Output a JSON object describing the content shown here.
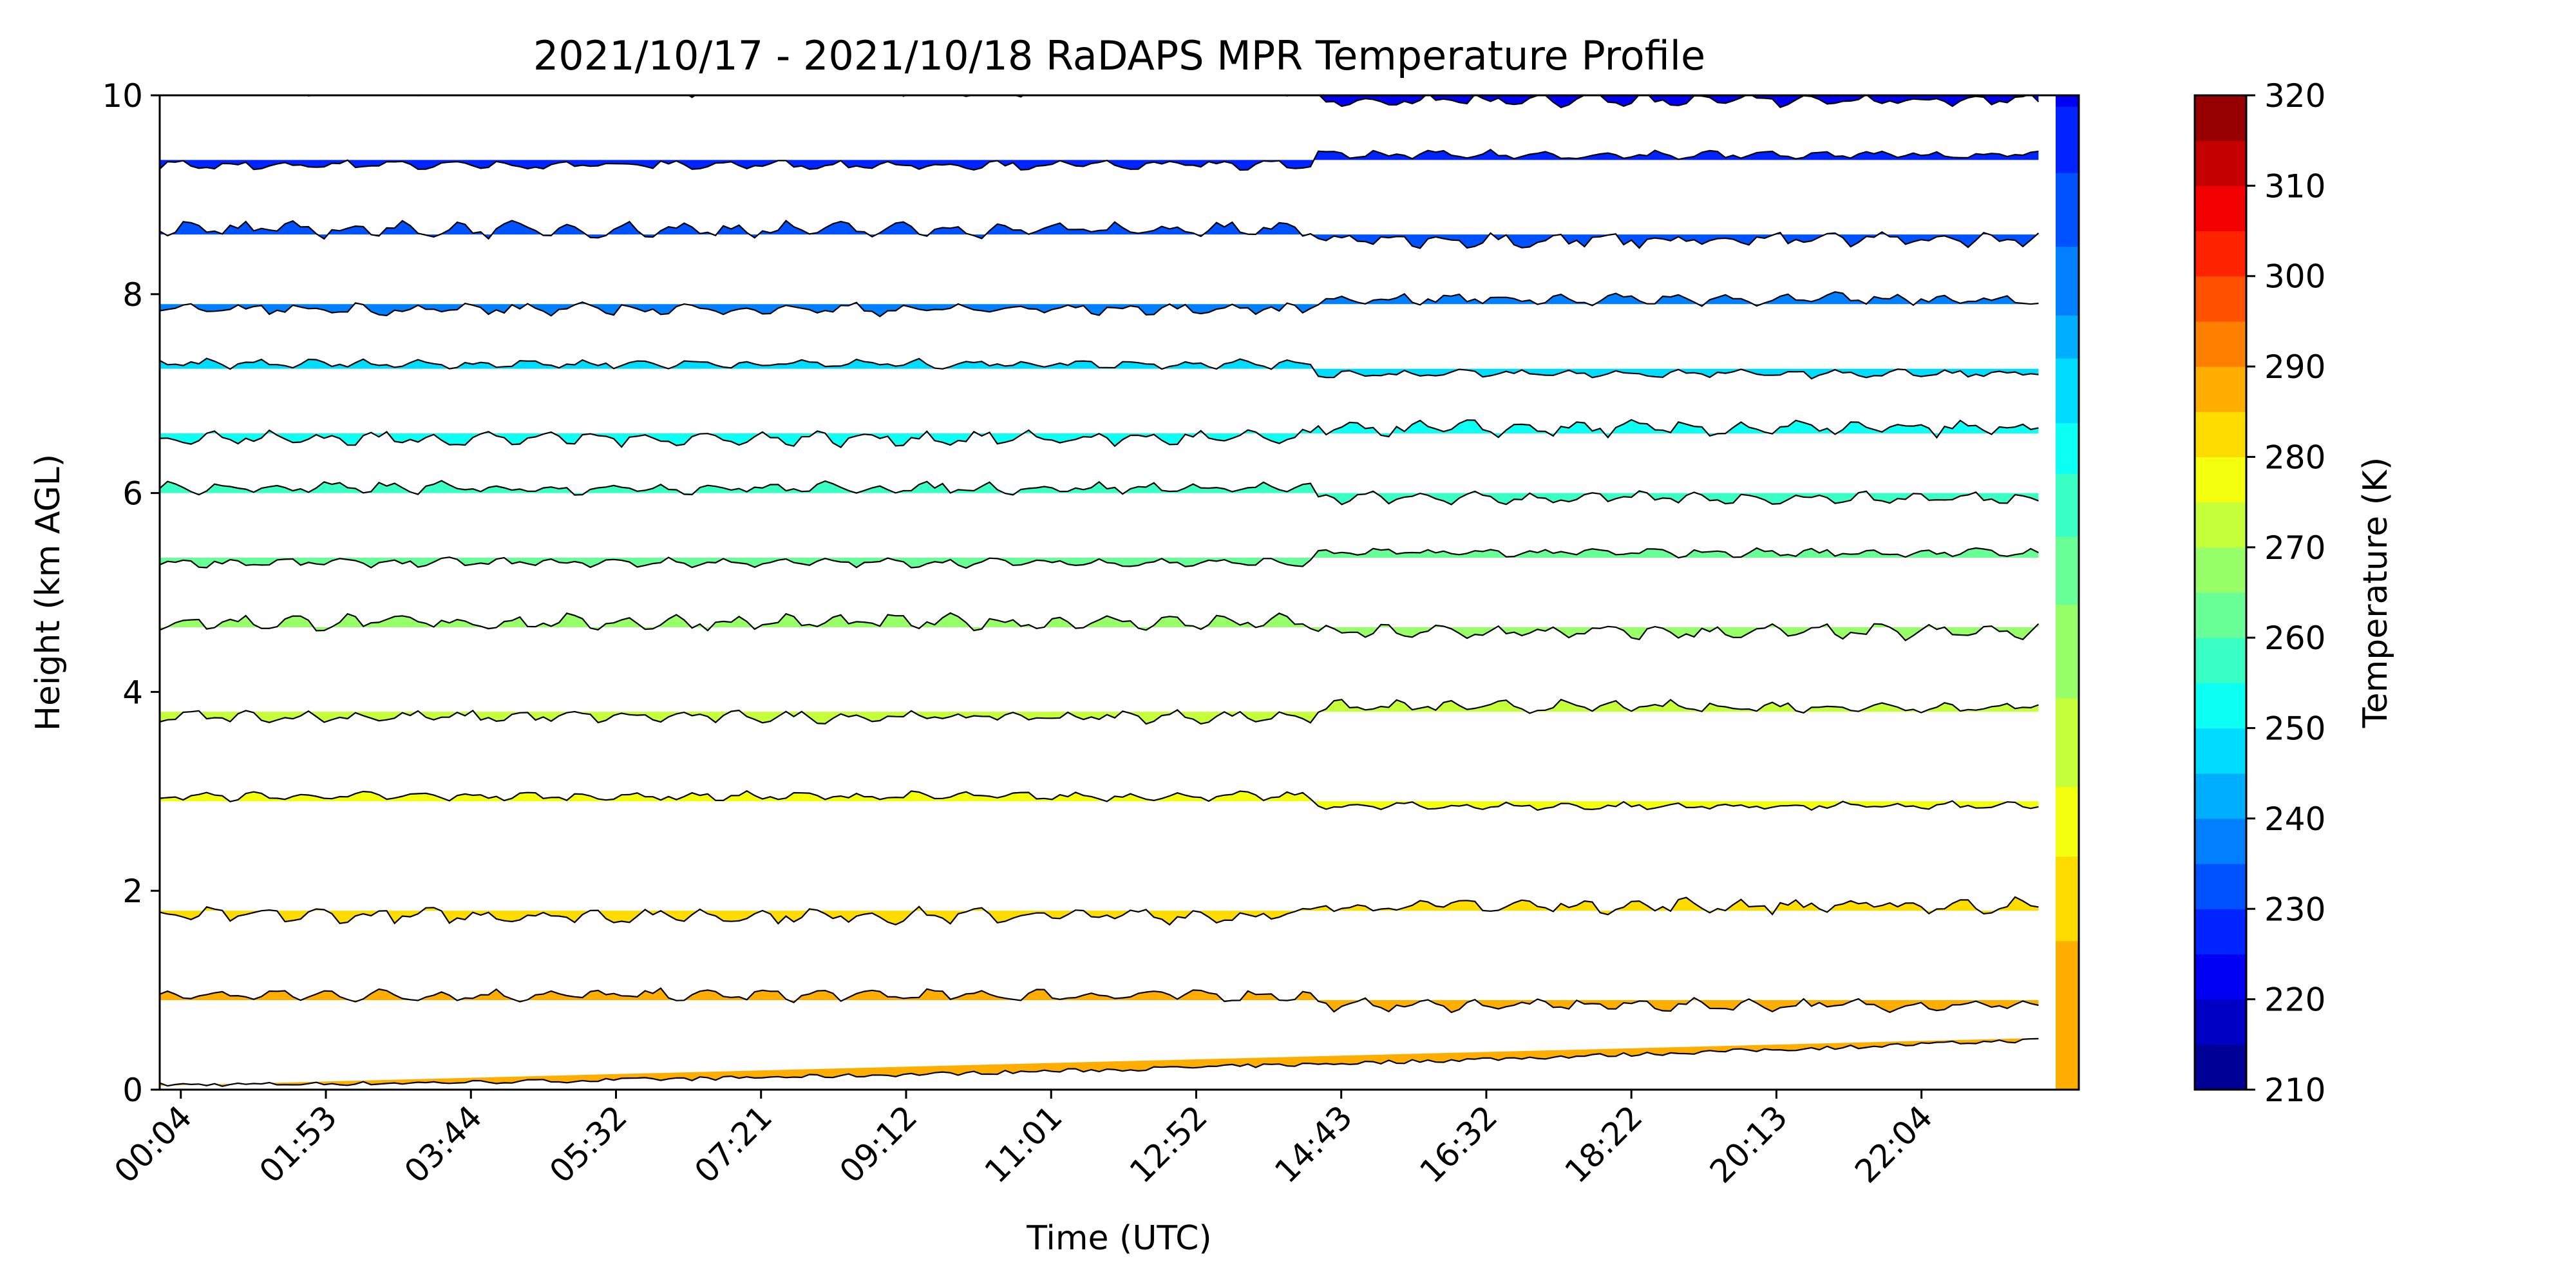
{
  "chart_data": {
    "type": "area",
    "title": "2021/10/17 - 2021/10/18 RaDAPS MPR Temperature Profile",
    "xlabel": "Time (UTC)",
    "ylabel": "Height (km AGL)",
    "ylim": [
      0,
      10
    ],
    "xlim": [
      0,
      1
    ],
    "x_tick_labels": [
      "00:04",
      "01:53",
      "03:44",
      "05:32",
      "07:21",
      "09:12",
      "11:01",
      "12:52",
      "14:43",
      "16:32",
      "18:22",
      "20:13",
      "22:04"
    ],
    "y_ticks": [
      0,
      2,
      4,
      6,
      8,
      10
    ],
    "grid": false,
    "colorbar": {
      "label": "Temperature (K)",
      "ticks": [
        210,
        220,
        230,
        240,
        250,
        260,
        270,
        280,
        290,
        300,
        310,
        320
      ],
      "range": [
        210,
        320
      ],
      "colormap": "jet",
      "levels": 22
    },
    "profiles": [
      {
        "height_km": 0.0,
        "temperature_K": 289
      },
      {
        "height_km": 0.9,
        "temperature_K": 288
      },
      {
        "height_km": 1.8,
        "temperature_K": 283
      },
      {
        "height_km": 2.9,
        "temperature_K": 276
      },
      {
        "height_km": 3.8,
        "temperature_K": 271
      },
      {
        "height_km": 4.65,
        "temperature_K": 266
      },
      {
        "height_km": 5.35,
        "temperature_K": 262
      },
      {
        "height_km": 6.0,
        "temperature_K": 257
      },
      {
        "height_km": 6.6,
        "temperature_K": 251
      },
      {
        "height_km": 7.25,
        "temperature_K": 246
      },
      {
        "height_km": 7.9,
        "temperature_K": 239
      },
      {
        "height_km": 8.6,
        "temperature_K": 234
      },
      {
        "height_km": 9.35,
        "temperature_K": 229
      },
      {
        "height_km": 10.0,
        "temperature_K": 224
      }
    ]
  }
}
